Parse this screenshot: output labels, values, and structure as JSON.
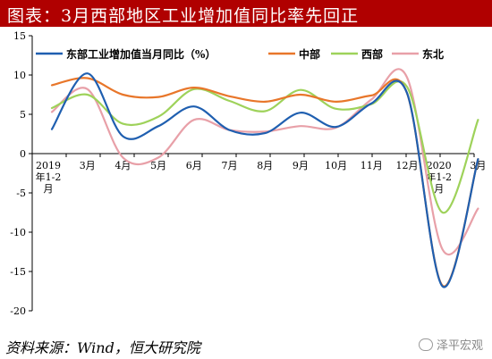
{
  "title": "图表：3月西部地区工业增加值同比率先回正",
  "source": "资料来源：Wind，恒大研究院",
  "watermark": "泽平宏观",
  "chart_data": {
    "type": "line",
    "x_labels": [
      [
        "2019",
        "年1-2",
        "月"
      ],
      [
        "3月"
      ],
      [
        "4月"
      ],
      [
        "5月"
      ],
      [
        "6月"
      ],
      [
        "7月"
      ],
      [
        "8月"
      ],
      [
        "9月"
      ],
      [
        "10月"
      ],
      [
        "11月"
      ],
      [
        "12月"
      ],
      [
        "2020",
        "年1-2",
        "月"
      ],
      [
        "3月"
      ]
    ],
    "ylim": [
      -20,
      15
    ],
    "yticks": [
      15,
      10,
      5,
      0,
      -5,
      -10,
      -15,
      -20
    ],
    "grid": false,
    "legend_position": "top",
    "series": [
      {
        "name": "东部工业增加值当月同比（%）",
        "color": "#1f5fb0",
        "values": [
          3.1,
          10.2,
          2.2,
          3.5,
          6.0,
          3.0,
          2.6,
          5.2,
          3.4,
          6.4,
          7.7,
          -16.9,
          -0.7
        ]
      },
      {
        "name": "中部",
        "color": "#e8762a",
        "values": [
          8.7,
          9.6,
          7.5,
          7.2,
          8.4,
          7.3,
          6.6,
          7.5,
          6.6,
          7.4,
          7.7,
          -16.8,
          -0.7
        ]
      },
      {
        "name": "西部",
        "color": "#9ed25a",
        "values": [
          5.8,
          7.5,
          3.8,
          4.7,
          8.2,
          6.7,
          5.4,
          8.1,
          5.7,
          6.3,
          8.5,
          -7.5,
          4.3
        ]
      },
      {
        "name": "东北",
        "color": "#e8a0a8",
        "values": [
          5.3,
          8.2,
          -0.5,
          -0.5,
          4.3,
          3.0,
          2.8,
          3.5,
          3.3,
          6.9,
          9.7,
          -12.2,
          -7.0
        ]
      }
    ]
  }
}
